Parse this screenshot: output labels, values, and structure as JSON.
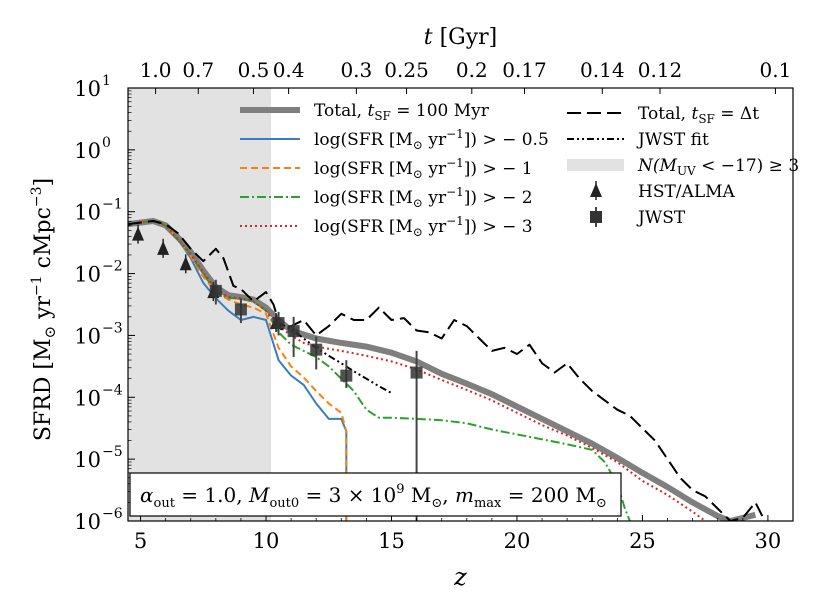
{
  "chart_data": {
    "type": "line",
    "xlabel": "z",
    "ylabel_main": "SFRD [M",
    "ylabel_sub": "⊙",
    "ylabel_rest": " yr",
    "ylabel_exp1": "−1",
    "ylabel_rest2": " cMpc",
    "ylabel_exp2": "−3",
    "ylabel_tail": "]",
    "top_xlabel": "t [Gyr]",
    "xlim": [
      4.5,
      31
    ],
    "ylim_log10": [
      -6,
      1
    ],
    "y_scale": "log",
    "grid": false,
    "x_ticks": [
      5,
      10,
      15,
      20,
      25,
      30
    ],
    "y_ticks": [
      {
        "base": "10",
        "exp": "1",
        "log": 1
      },
      {
        "base": "10",
        "exp": "0",
        "log": 0
      },
      {
        "base": "10",
        "exp": "−1",
        "log": -1
      },
      {
        "base": "10",
        "exp": "−2",
        "log": -2
      },
      {
        "base": "10",
        "exp": "−3",
        "log": -3
      },
      {
        "base": "10",
        "exp": "−4",
        "log": -4
      },
      {
        "base": "10",
        "exp": "−5",
        "log": -5
      },
      {
        "base": "10",
        "exp": "−6",
        "log": -6
      }
    ],
    "top_ticks": [
      {
        "label": "1.0",
        "z": 5.6
      },
      {
        "label": "0.7",
        "z": 7.3
      },
      {
        "label": "0.5",
        "z": 9.5
      },
      {
        "label": "0.4",
        "z": 10.9
      },
      {
        "label": "0.3",
        "z": 13.6
      },
      {
        "label": "0.25",
        "z": 15.6
      },
      {
        "label": "0.2",
        "z": 18.2
      },
      {
        "label": "0.17",
        "z": 20.3
      },
      {
        "label": "0.14",
        "z": 23.4
      },
      {
        "label": "0.12",
        "z": 25.7
      },
      {
        "label": "0.1",
        "z": 30.3
      }
    ],
    "shaded_region": {
      "label": "N(M_UV < −17) ≥ 3",
      "x": [
        4.5,
        10.2
      ],
      "color": "#e2e2e2"
    },
    "series": [
      {
        "name": "Total, t_SF = 100 Myr",
        "color": "#7f7f7f",
        "style": "solid",
        "width": 6,
        "points": [
          [
            4.5,
            -1.2
          ],
          [
            5.5,
            -1.15
          ],
          [
            6,
            -1.22
          ],
          [
            6.5,
            -1.42
          ],
          [
            7,
            -1.65
          ],
          [
            7.5,
            -1.95
          ],
          [
            8,
            -2.22
          ],
          [
            8.5,
            -2.35
          ],
          [
            9,
            -2.38
          ],
          [
            9.5,
            -2.42
          ],
          [
            10,
            -2.55
          ],
          [
            10.5,
            -2.75
          ],
          [
            11,
            -2.92
          ],
          [
            12,
            -3.05
          ],
          [
            13,
            -3.12
          ],
          [
            14,
            -3.18
          ],
          [
            15,
            -3.28
          ],
          [
            16,
            -3.42
          ],
          [
            17,
            -3.62
          ],
          [
            18,
            -3.78
          ],
          [
            19,
            -3.95
          ],
          [
            20,
            -4.15
          ],
          [
            21,
            -4.35
          ],
          [
            22,
            -4.55
          ],
          [
            23,
            -4.75
          ],
          [
            24,
            -4.98
          ],
          [
            25,
            -5.22
          ],
          [
            26,
            -5.45
          ],
          [
            27,
            -5.7
          ],
          [
            28,
            -5.92
          ],
          [
            28.5,
            -6.0
          ],
          [
            29,
            -5.95
          ],
          [
            29.5,
            -5.9
          ]
        ]
      },
      {
        "name": "log(SFR [M⊙ yr⁻¹]) > −0.5",
        "color": "#3a7dbd",
        "style": "solid",
        "width": 2,
        "points": [
          [
            4.5,
            -1.2
          ],
          [
            5.5,
            -1.15
          ],
          [
            6,
            -1.22
          ],
          [
            6.5,
            -1.45
          ],
          [
            7,
            -1.75
          ],
          [
            7.5,
            -2.15
          ],
          [
            8,
            -2.4
          ],
          [
            8.5,
            -2.6
          ],
          [
            9,
            -2.75
          ],
          [
            9.5,
            -2.7
          ],
          [
            10,
            -2.75
          ],
          [
            10.5,
            -3.4
          ],
          [
            11,
            -3.65
          ],
          [
            11.5,
            -3.8
          ],
          [
            12,
            -4.1
          ],
          [
            12.5,
            -4.35
          ],
          [
            13,
            -4.35
          ],
          [
            13.2,
            -4.55
          ],
          [
            13.2,
            -6.3
          ]
        ]
      },
      {
        "name": "log(SFR [M⊙ yr⁻¹]) > −1",
        "color": "#ff7f0e",
        "style": "dashed",
        "width": 2,
        "points": [
          [
            4.5,
            -1.2
          ],
          [
            5.5,
            -1.15
          ],
          [
            6,
            -1.22
          ],
          [
            6.5,
            -1.45
          ],
          [
            7,
            -1.72
          ],
          [
            7.5,
            -2.05
          ],
          [
            8,
            -2.3
          ],
          [
            8.5,
            -2.42
          ],
          [
            9,
            -2.5
          ],
          [
            9.5,
            -2.55
          ],
          [
            10,
            -2.65
          ],
          [
            10.5,
            -3.2
          ],
          [
            11,
            -3.5
          ],
          [
            11.5,
            -3.68
          ],
          [
            12,
            -3.9
          ],
          [
            12.5,
            -4.1
          ],
          [
            13,
            -4.25
          ],
          [
            13.2,
            -4.55
          ],
          [
            13.2,
            -6.3
          ]
        ]
      },
      {
        "name": "log(SFR [M⊙ yr⁻¹]) > −2",
        "color": "#2ca02c",
        "style": "dashdot",
        "width": 2,
        "points": [
          [
            4.5,
            -1.2
          ],
          [
            5.5,
            -1.15
          ],
          [
            6,
            -1.22
          ],
          [
            6.5,
            -1.45
          ],
          [
            7,
            -1.7
          ],
          [
            7.5,
            -2.0
          ],
          [
            8,
            -2.3
          ],
          [
            8.5,
            -2.4
          ],
          [
            9,
            -2.4
          ],
          [
            9.5,
            -2.45
          ],
          [
            10,
            -2.6
          ],
          [
            10.5,
            -2.95
          ],
          [
            11,
            -3.15
          ],
          [
            11.5,
            -3.25
          ],
          [
            12,
            -3.35
          ],
          [
            12.5,
            -3.5
          ],
          [
            13,
            -3.7
          ],
          [
            13.5,
            -3.9
          ],
          [
            14,
            -4.2
          ],
          [
            14.5,
            -4.33
          ],
          [
            15,
            -4.33
          ],
          [
            16,
            -4.35
          ],
          [
            17,
            -4.37
          ],
          [
            18,
            -4.42
          ],
          [
            19,
            -4.52
          ],
          [
            20,
            -4.6
          ],
          [
            21,
            -4.68
          ],
          [
            22,
            -4.76
          ],
          [
            23,
            -4.85
          ],
          [
            23.5,
            -5.05
          ],
          [
            24,
            -5.4
          ],
          [
            24.3,
            -5.8
          ],
          [
            24.5,
            -6.0
          ]
        ]
      },
      {
        "name": "log(SFR [M⊙ yr⁻¹]) > −3",
        "color": "#d62728",
        "style": "dotted",
        "width": 2,
        "points": [
          [
            4.5,
            -1.2
          ],
          [
            5.5,
            -1.15
          ],
          [
            6,
            -1.22
          ],
          [
            6.5,
            -1.45
          ],
          [
            7,
            -1.68
          ],
          [
            7.5,
            -1.98
          ],
          [
            8,
            -2.25
          ],
          [
            8.5,
            -2.38
          ],
          [
            9,
            -2.4
          ],
          [
            9.5,
            -2.45
          ],
          [
            10,
            -2.6
          ],
          [
            10.5,
            -2.85
          ],
          [
            11,
            -3.0
          ],
          [
            11.5,
            -3.12
          ],
          [
            12,
            -3.18
          ],
          [
            13,
            -3.25
          ],
          [
            14,
            -3.33
          ],
          [
            15,
            -3.42
          ],
          [
            16,
            -3.55
          ],
          [
            17,
            -3.72
          ],
          [
            18,
            -3.88
          ],
          [
            19,
            -4.05
          ],
          [
            20,
            -4.25
          ],
          [
            21,
            -4.45
          ],
          [
            22,
            -4.62
          ],
          [
            23,
            -4.82
          ],
          [
            24,
            -5.05
          ],
          [
            25,
            -5.35
          ],
          [
            26,
            -5.58
          ],
          [
            27,
            -5.85
          ],
          [
            27.5,
            -6.0
          ]
        ]
      },
      {
        "name": "Total, t_SF = Δt",
        "color": "#000000",
        "style": "longdash",
        "width": 2,
        "points": [
          [
            4.5,
            -1.2
          ],
          [
            5.5,
            -1.15
          ],
          [
            6,
            -1.2
          ],
          [
            6.5,
            -1.35
          ],
          [
            7,
            -1.6
          ],
          [
            7.5,
            -1.8
          ],
          [
            8,
            -1.6
          ],
          [
            8.3,
            -1.75
          ],
          [
            8.7,
            -2.2
          ],
          [
            9,
            -2.25
          ],
          [
            9.5,
            -2.45
          ],
          [
            10,
            -2.3
          ],
          [
            10.3,
            -2.5
          ],
          [
            10.6,
            -2.9
          ],
          [
            11,
            -2.85
          ],
          [
            11.5,
            -2.75
          ],
          [
            12,
            -3.0
          ],
          [
            12.5,
            -2.85
          ],
          [
            13,
            -2.65
          ],
          [
            13.5,
            -2.75
          ],
          [
            14,
            -2.75
          ],
          [
            14.5,
            -2.55
          ],
          [
            15,
            -2.75
          ],
          [
            15.5,
            -2.72
          ],
          [
            16,
            -2.92
          ],
          [
            16.5,
            -2.95
          ],
          [
            17,
            -3.05
          ],
          [
            17.5,
            -2.75
          ],
          [
            18,
            -2.85
          ],
          [
            18.5,
            -3.05
          ],
          [
            19,
            -3.25
          ],
          [
            19.5,
            -3.2
          ],
          [
            20,
            -3.3
          ],
          [
            20.5,
            -3.15
          ],
          [
            21,
            -3.45
          ],
          [
            21.5,
            -3.6
          ],
          [
            22,
            -3.45
          ],
          [
            22.5,
            -3.7
          ],
          [
            23,
            -3.9
          ],
          [
            23.5,
            -4.05
          ],
          [
            24,
            -4.2
          ],
          [
            24.5,
            -4.3
          ],
          [
            25,
            -4.5
          ],
          [
            25.5,
            -4.7
          ],
          [
            26,
            -5.0
          ],
          [
            26.5,
            -5.3
          ],
          [
            27,
            -5.5
          ],
          [
            27.5,
            -5.6
          ],
          [
            28,
            -5.8
          ],
          [
            28.5,
            -6.0
          ],
          [
            29,
            -5.95
          ],
          [
            29.5,
            -5.7
          ],
          [
            30,
            -6.1
          ]
        ]
      },
      {
        "name": "JWST fit",
        "color": "#000000",
        "style": "dashdotdot",
        "width": 2,
        "points": [
          [
            10.5,
            -2.8
          ],
          [
            11,
            -2.9
          ],
          [
            11.5,
            -3.05
          ],
          [
            12,
            -3.2
          ],
          [
            12.5,
            -3.33
          ],
          [
            13,
            -3.45
          ],
          [
            13.5,
            -3.58
          ],
          [
            14,
            -3.7
          ],
          [
            14.5,
            -3.82
          ],
          [
            15,
            -3.93
          ]
        ]
      }
    ],
    "hst_alma": {
      "name": "HST/ALMA",
      "color": "#222222",
      "points": [
        {
          "x": 4.9,
          "y": -1.37
        },
        {
          "x": 5.9,
          "y": -1.6
        },
        {
          "x": 6.8,
          "y": -1.85
        },
        {
          "x": 7.9,
          "y": -2.3
        },
        {
          "x": 10.4,
          "y": -2.8
        }
      ]
    },
    "jwst": {
      "name": "JWST",
      "color": "#333333",
      "points": [
        {
          "x": 8.0,
          "y": -2.28,
          "lo": -2.5,
          "hi": -2.1
        },
        {
          "x": 9.0,
          "y": -2.58,
          "lo": -2.8,
          "hi": -2.4
        },
        {
          "x": 10.5,
          "y": -2.8,
          "lo": -3.0,
          "hi": -2.62
        },
        {
          "x": 11.1,
          "y": -2.93,
          "lo": -3.35,
          "hi": -2.7
        },
        {
          "x": 12.0,
          "y": -3.23,
          "lo": -3.55,
          "hi": -3.02
        },
        {
          "x": 13.2,
          "y": -3.65,
          "lo": -3.85,
          "hi": -3.4
        },
        {
          "x": 16.0,
          "y": -3.6,
          "lo": -6.3,
          "hi": -3.25
        }
      ]
    },
    "annotation": {
      "text_parts": [
        "α",
        "out",
        " = 1.0, ",
        "M",
        "out0",
        " = 3 × 10",
        "9",
        " M",
        "⊙",
        ", ",
        "m",
        "max",
        " = 200 M",
        "⊙"
      ]
    },
    "legend_left": [
      {
        "key": "total100",
        "text": "Total, ",
        "italic": "t",
        "sub": "SF",
        "tail": " = 100 Myr"
      },
      {
        "key": "l05",
        "text": "log(SFR [M",
        "sub": "⊙",
        "tail": " yr",
        "sup": "−1",
        "tail2": "]) > − 0.5"
      },
      {
        "key": "l1",
        "text": "log(SFR [M",
        "sub": "⊙",
        "tail": " yr",
        "sup": "−1",
        "tail2": "]) > − 1"
      },
      {
        "key": "l2",
        "text": "log(SFR [M",
        "sub": "⊙",
        "tail": " yr",
        "sup": "−1",
        "tail2": "]) > − 2"
      },
      {
        "key": "l3",
        "text": "log(SFR [M",
        "sub": "⊙",
        "tail": " yr",
        "sup": "−1",
        "tail2": "]) > − 3"
      }
    ],
    "legend_right": [
      {
        "key": "totaldt",
        "text": "Total, ",
        "italic": "t",
        "sub": "SF",
        "tail": " = Δt"
      },
      {
        "key": "jwstfit",
        "text": "JWST fit"
      },
      {
        "key": "shade",
        "text": "N(M",
        "sub": "UV",
        "tail": " < −17) ≥ 3"
      },
      {
        "key": "hst",
        "text": "HST/ALMA"
      },
      {
        "key": "jwstpts",
        "text": "JWST"
      }
    ]
  }
}
